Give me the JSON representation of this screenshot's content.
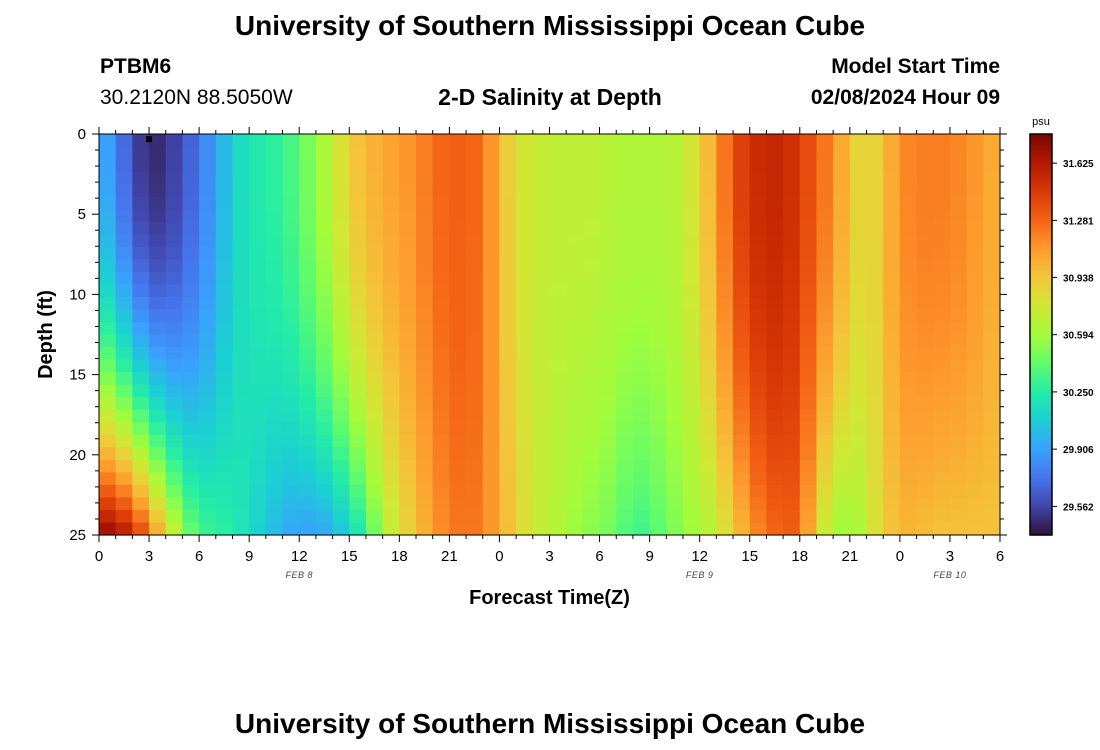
{
  "header": {
    "title": "University of Southern Mississippi Ocean Cube",
    "station": "PTBM6",
    "coords": "30.2120N  88.5050W",
    "subtitle": "2-D Salinity at Depth",
    "model_start_label": "Model Start Time",
    "model_start_value": "02/08/2024 Hour 09"
  },
  "footer": {
    "title": "University of Southern Mississippi Ocean Cube"
  },
  "colorbar": {
    "unit": "psu",
    "ticks": [
      "31.625",
      "31.281",
      "30.938",
      "30.594",
      "30.250",
      "29.906",
      "29.562"
    ],
    "tick_values": [
      31.625,
      31.281,
      30.938,
      30.594,
      30.25,
      29.906,
      29.562
    ],
    "vmin": 29.39,
    "vmax": 31.8,
    "colors": [
      "#30123b",
      "#4145ab",
      "#4675ed",
      "#39a2fc",
      "#1bcfd4",
      "#24eca6",
      "#61fc6c",
      "#a4fc3b",
      "#d1e834",
      "#f3c63a",
      "#fe9b2d",
      "#f36315",
      "#d93806",
      "#b11901",
      "#7a0402"
    ]
  },
  "chart_data": {
    "type": "heatmap",
    "title": "2-D Salinity at Depth",
    "xlabel": "Forecast Time(Z)",
    "ylabel": "Depth (ft)",
    "xlim": [
      0,
      54
    ],
    "ylim": [
      0,
      25
    ],
    "y_inverted": true,
    "x_tick_labels": [
      "0",
      "3",
      "6",
      "9",
      "12",
      "15",
      "18",
      "21",
      "0",
      "3",
      "6",
      "9",
      "12",
      "15",
      "18",
      "21",
      "0",
      "3",
      "6"
    ],
    "y_tick_labels": [
      "0",
      "5",
      "10",
      "15",
      "20",
      "25"
    ],
    "date_labels": [
      {
        "label": "FEB 8",
        "x_hours": 12
      },
      {
        "label": "FEB 9",
        "x_hours": 36
      },
      {
        "label": "FEB 10",
        "x_hours": 51
      }
    ],
    "marker": {
      "x_hours": 3,
      "depth_ft": 0.2
    },
    "profile_hours": [
      0,
      1,
      2,
      3,
      4,
      5,
      6,
      7,
      8,
      9,
      10,
      11,
      12,
      13,
      14,
      15,
      16,
      17,
      18,
      19,
      20,
      21,
      22,
      23,
      24,
      25,
      26,
      27,
      28,
      29,
      30,
      31,
      32,
      33,
      34,
      35,
      36,
      37,
      38,
      39,
      40,
      41,
      42,
      43,
      44,
      45,
      46,
      47,
      48,
      49,
      50,
      51,
      52,
      53,
      54
    ],
    "surface_salinity_psu": [
      30.0,
      29.8,
      29.6,
      29.45,
      29.5,
      29.6,
      29.75,
      29.9,
      30.1,
      30.2,
      30.25,
      30.3,
      30.4,
      30.55,
      30.7,
      30.9,
      31.0,
      31.05,
      31.1,
      31.15,
      31.25,
      31.3,
      31.3,
      31.25,
      31.0,
      30.8,
      30.75,
      30.7,
      30.7,
      30.7,
      30.7,
      30.65,
      30.65,
      30.65,
      30.65,
      30.7,
      30.85,
      31.1,
      31.35,
      31.5,
      31.55,
      31.55,
      31.45,
      31.3,
      31.15,
      30.95,
      30.8,
      30.95,
      31.15,
      31.2,
      31.2,
      31.2,
      31.15,
      31.1,
      31.0
    ],
    "bottom_salinity_psu": [
      31.75,
      31.7,
      31.55,
      31.25,
      30.9,
      30.55,
      30.35,
      30.3,
      30.25,
      30.15,
      30.05,
      29.95,
      29.9,
      29.9,
      29.95,
      30.1,
      30.3,
      30.6,
      30.8,
      30.95,
      31.1,
      31.2,
      31.25,
      31.2,
      31.05,
      30.9,
      30.75,
      30.7,
      30.6,
      30.55,
      30.5,
      30.45,
      30.3,
      30.35,
      30.45,
      30.55,
      30.6,
      30.7,
      30.9,
      31.1,
      31.25,
      31.3,
      31.3,
      30.85,
      30.6,
      30.55,
      30.7,
      30.9,
      31.0,
      31.0,
      30.95,
      30.95,
      30.95,
      30.95,
      30.95
    ]
  }
}
